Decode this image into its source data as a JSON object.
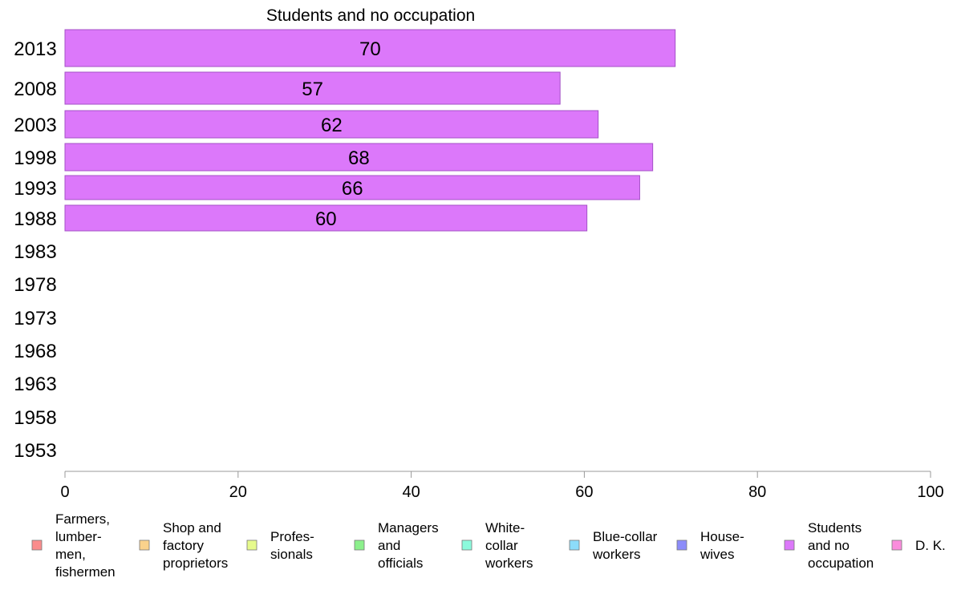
{
  "chart_data": {
    "type": "bar",
    "orientation": "horizontal",
    "title": "Students and no occupation",
    "categories": [
      "2013",
      "2008",
      "2003",
      "1998",
      "1993",
      "1988",
      "1983",
      "1978",
      "1973",
      "1968",
      "1963",
      "1958",
      "1953"
    ],
    "series": [
      {
        "name": "Students and no occupation",
        "color": "#dc78fa",
        "values": [
          70.5,
          57.2,
          61.6,
          67.9,
          66.4,
          60.3,
          null,
          null,
          null,
          null,
          null,
          null,
          null
        ],
        "labels": [
          "70",
          "57",
          "62",
          "68",
          "66",
          "60",
          "",
          "",
          "",
          "",
          "",
          "",
          ""
        ]
      }
    ],
    "xlim": [
      0,
      100
    ],
    "x_ticks": [
      "0",
      "20",
      "40",
      "60",
      "80",
      "100"
    ],
    "grid": false,
    "legend_position": "bottom",
    "legend": [
      {
        "label_lines": [
          "Farmers,",
          "lumber-",
          "men,",
          "fishermen"
        ],
        "color": "#fa8c8c"
      },
      {
        "label_lines": [
          "Shop and",
          "factory",
          "proprietors"
        ],
        "color": "#fad28c"
      },
      {
        "label_lines": [
          "Profes-",
          "sionals"
        ],
        "color": "#e6fa8c"
      },
      {
        "label_lines": [
          "Managers",
          "and",
          "officials"
        ],
        "color": "#8cf08c"
      },
      {
        "label_lines": [
          "White-",
          "collar",
          "workers"
        ],
        "color": "#8cfadc"
      },
      {
        "label_lines": [
          "Blue-collar",
          "workers"
        ],
        "color": "#8cdcfa"
      },
      {
        "label_lines": [
          "House-",
          "wives"
        ],
        "color": "#8c8cfa"
      },
      {
        "label_lines": [
          "Students",
          "and no",
          "occupation"
        ],
        "color": "#dc78fa"
      },
      {
        "label_lines": [
          "D. K."
        ],
        "color": "#fa8cdc"
      }
    ]
  }
}
